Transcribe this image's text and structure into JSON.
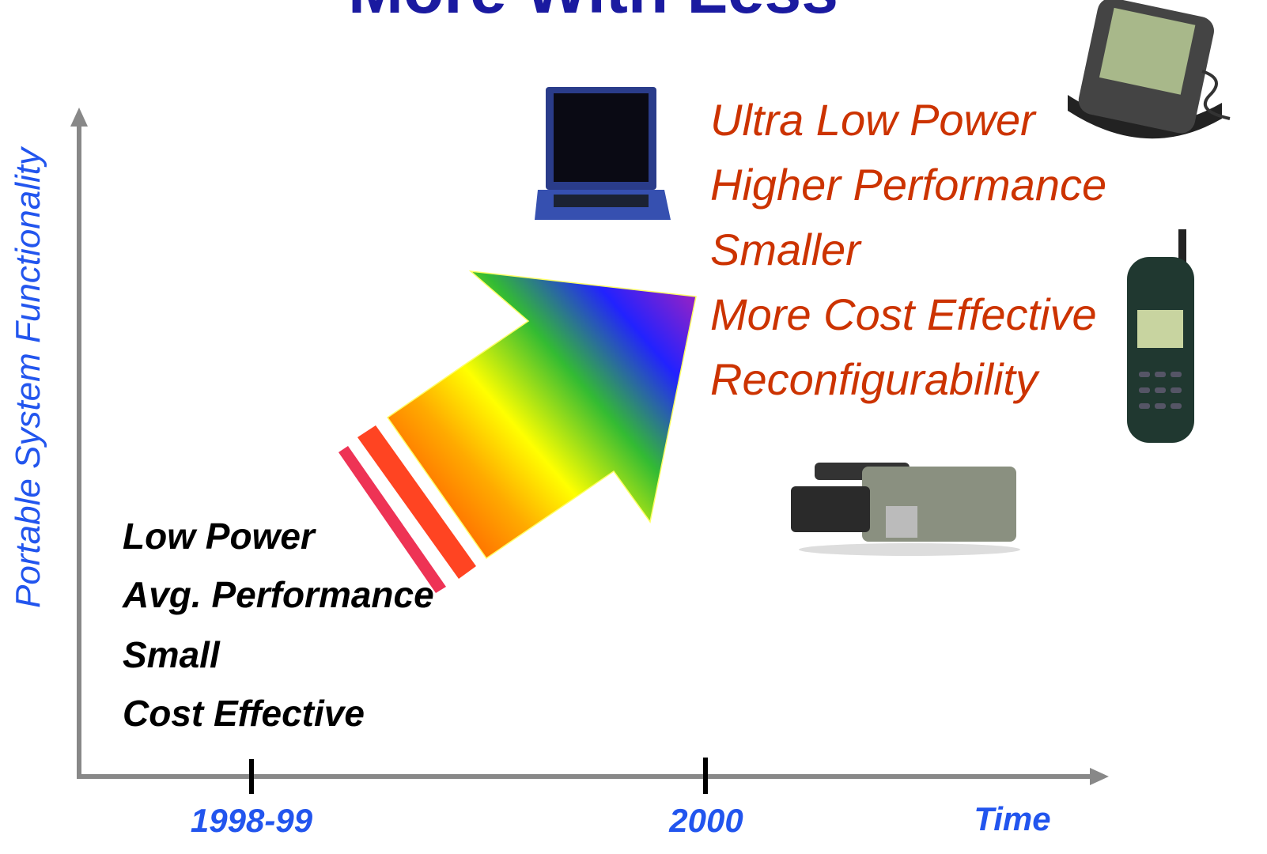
{
  "title": "More With Less",
  "y_axis_label": "Portable System Functionality",
  "x_axis_label": "Time",
  "x_ticks": [
    "1998-99",
    "2000"
  ],
  "before": [
    "Low Power",
    "Avg. Performance",
    "Small",
    "Cost Effective"
  ],
  "after": [
    "Ultra Low Power",
    "Higher Performance",
    "Smaller",
    "More Cost Effective",
    "Reconfigurability"
  ]
}
